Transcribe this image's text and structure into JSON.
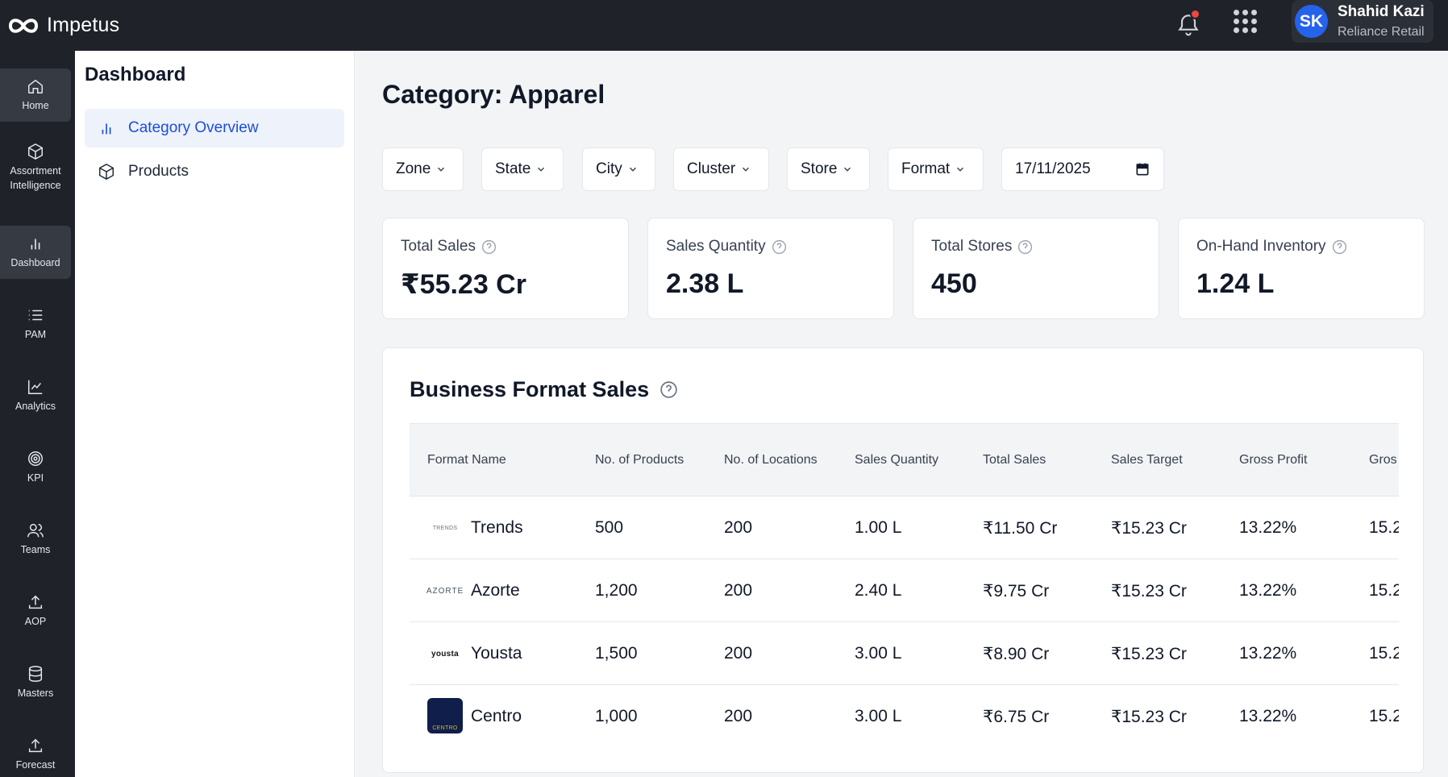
{
  "app": {
    "name": "Impetus"
  },
  "user": {
    "initials": "SK",
    "name": "Shahid Kazi",
    "org": "Reliance Retail"
  },
  "rail": {
    "items": [
      {
        "label": "Home",
        "icon": "home-icon"
      },
      {
        "label": "Assortment Intelligence",
        "icon": "cube-icon"
      },
      {
        "label": "Dashboard",
        "icon": "bar-chart-icon"
      },
      {
        "label": "PAM",
        "icon": "list-icon"
      },
      {
        "label": "Analytics",
        "icon": "line-chart-icon"
      },
      {
        "label": "KPI",
        "icon": "target-icon"
      },
      {
        "label": "Teams",
        "icon": "users-icon"
      },
      {
        "label": "AOP",
        "icon": "upload-icon"
      },
      {
        "label": "Masters",
        "icon": "database-icon"
      },
      {
        "label": "Forecast",
        "icon": "upload-icon"
      }
    ]
  },
  "sidebar": {
    "title": "Dashboard",
    "items": [
      {
        "label": "Category Overview",
        "icon": "bar-chart-icon"
      },
      {
        "label": "Products",
        "icon": "cube-icon"
      }
    ]
  },
  "page": {
    "title": "Category: Apparel"
  },
  "filters": {
    "zone": "Zone",
    "state": "State",
    "city": "City",
    "cluster": "Cluster",
    "store": "Store",
    "format": "Format",
    "date": "17/11/2025"
  },
  "kpis": [
    {
      "label": "Total Sales",
      "value": "₹55.23 Cr"
    },
    {
      "label": "Sales Quantity",
      "value": "2.38 L"
    },
    {
      "label": "Total Stores",
      "value": "450"
    },
    {
      "label": "On-Hand Inventory",
      "value": "1.24 L"
    }
  ],
  "business": {
    "title": "Business Format Sales",
    "columns": [
      "Format Name",
      "No. of Products",
      "No. of Locations",
      "Sales Quantity",
      "Total Sales",
      "Sales Target",
      "Gross Profit",
      "Gros"
    ],
    "rows": [
      {
        "logo": "TRENDS",
        "name": "Trends",
        "products": "500",
        "locations": "200",
        "qty": "1.00 L",
        "sales": "₹11.50 Cr",
        "target": "₹15.23 Cr",
        "gp": "13.22%",
        "extra": "15.2"
      },
      {
        "logo": "AZORTE",
        "name": "Azorte",
        "products": "1,200",
        "locations": "200",
        "qty": "2.40 L",
        "sales": "₹9.75 Cr",
        "target": "₹15.23 Cr",
        "gp": "13.22%",
        "extra": "15.2"
      },
      {
        "logo": "yousta",
        "name": "Yousta",
        "products": "1,500",
        "locations": "200",
        "qty": "3.00 L",
        "sales": "₹8.90 Cr",
        "target": "₹15.23 Cr",
        "gp": "13.22%",
        "extra": "15.2"
      },
      {
        "logo": "CENTRO",
        "name": "Centro",
        "products": "1,000",
        "locations": "200",
        "qty": "3.00 L",
        "sales": "₹6.75 Cr",
        "target": "₹15.23 Cr",
        "gp": "13.22%",
        "extra": "15.2"
      }
    ]
  }
}
